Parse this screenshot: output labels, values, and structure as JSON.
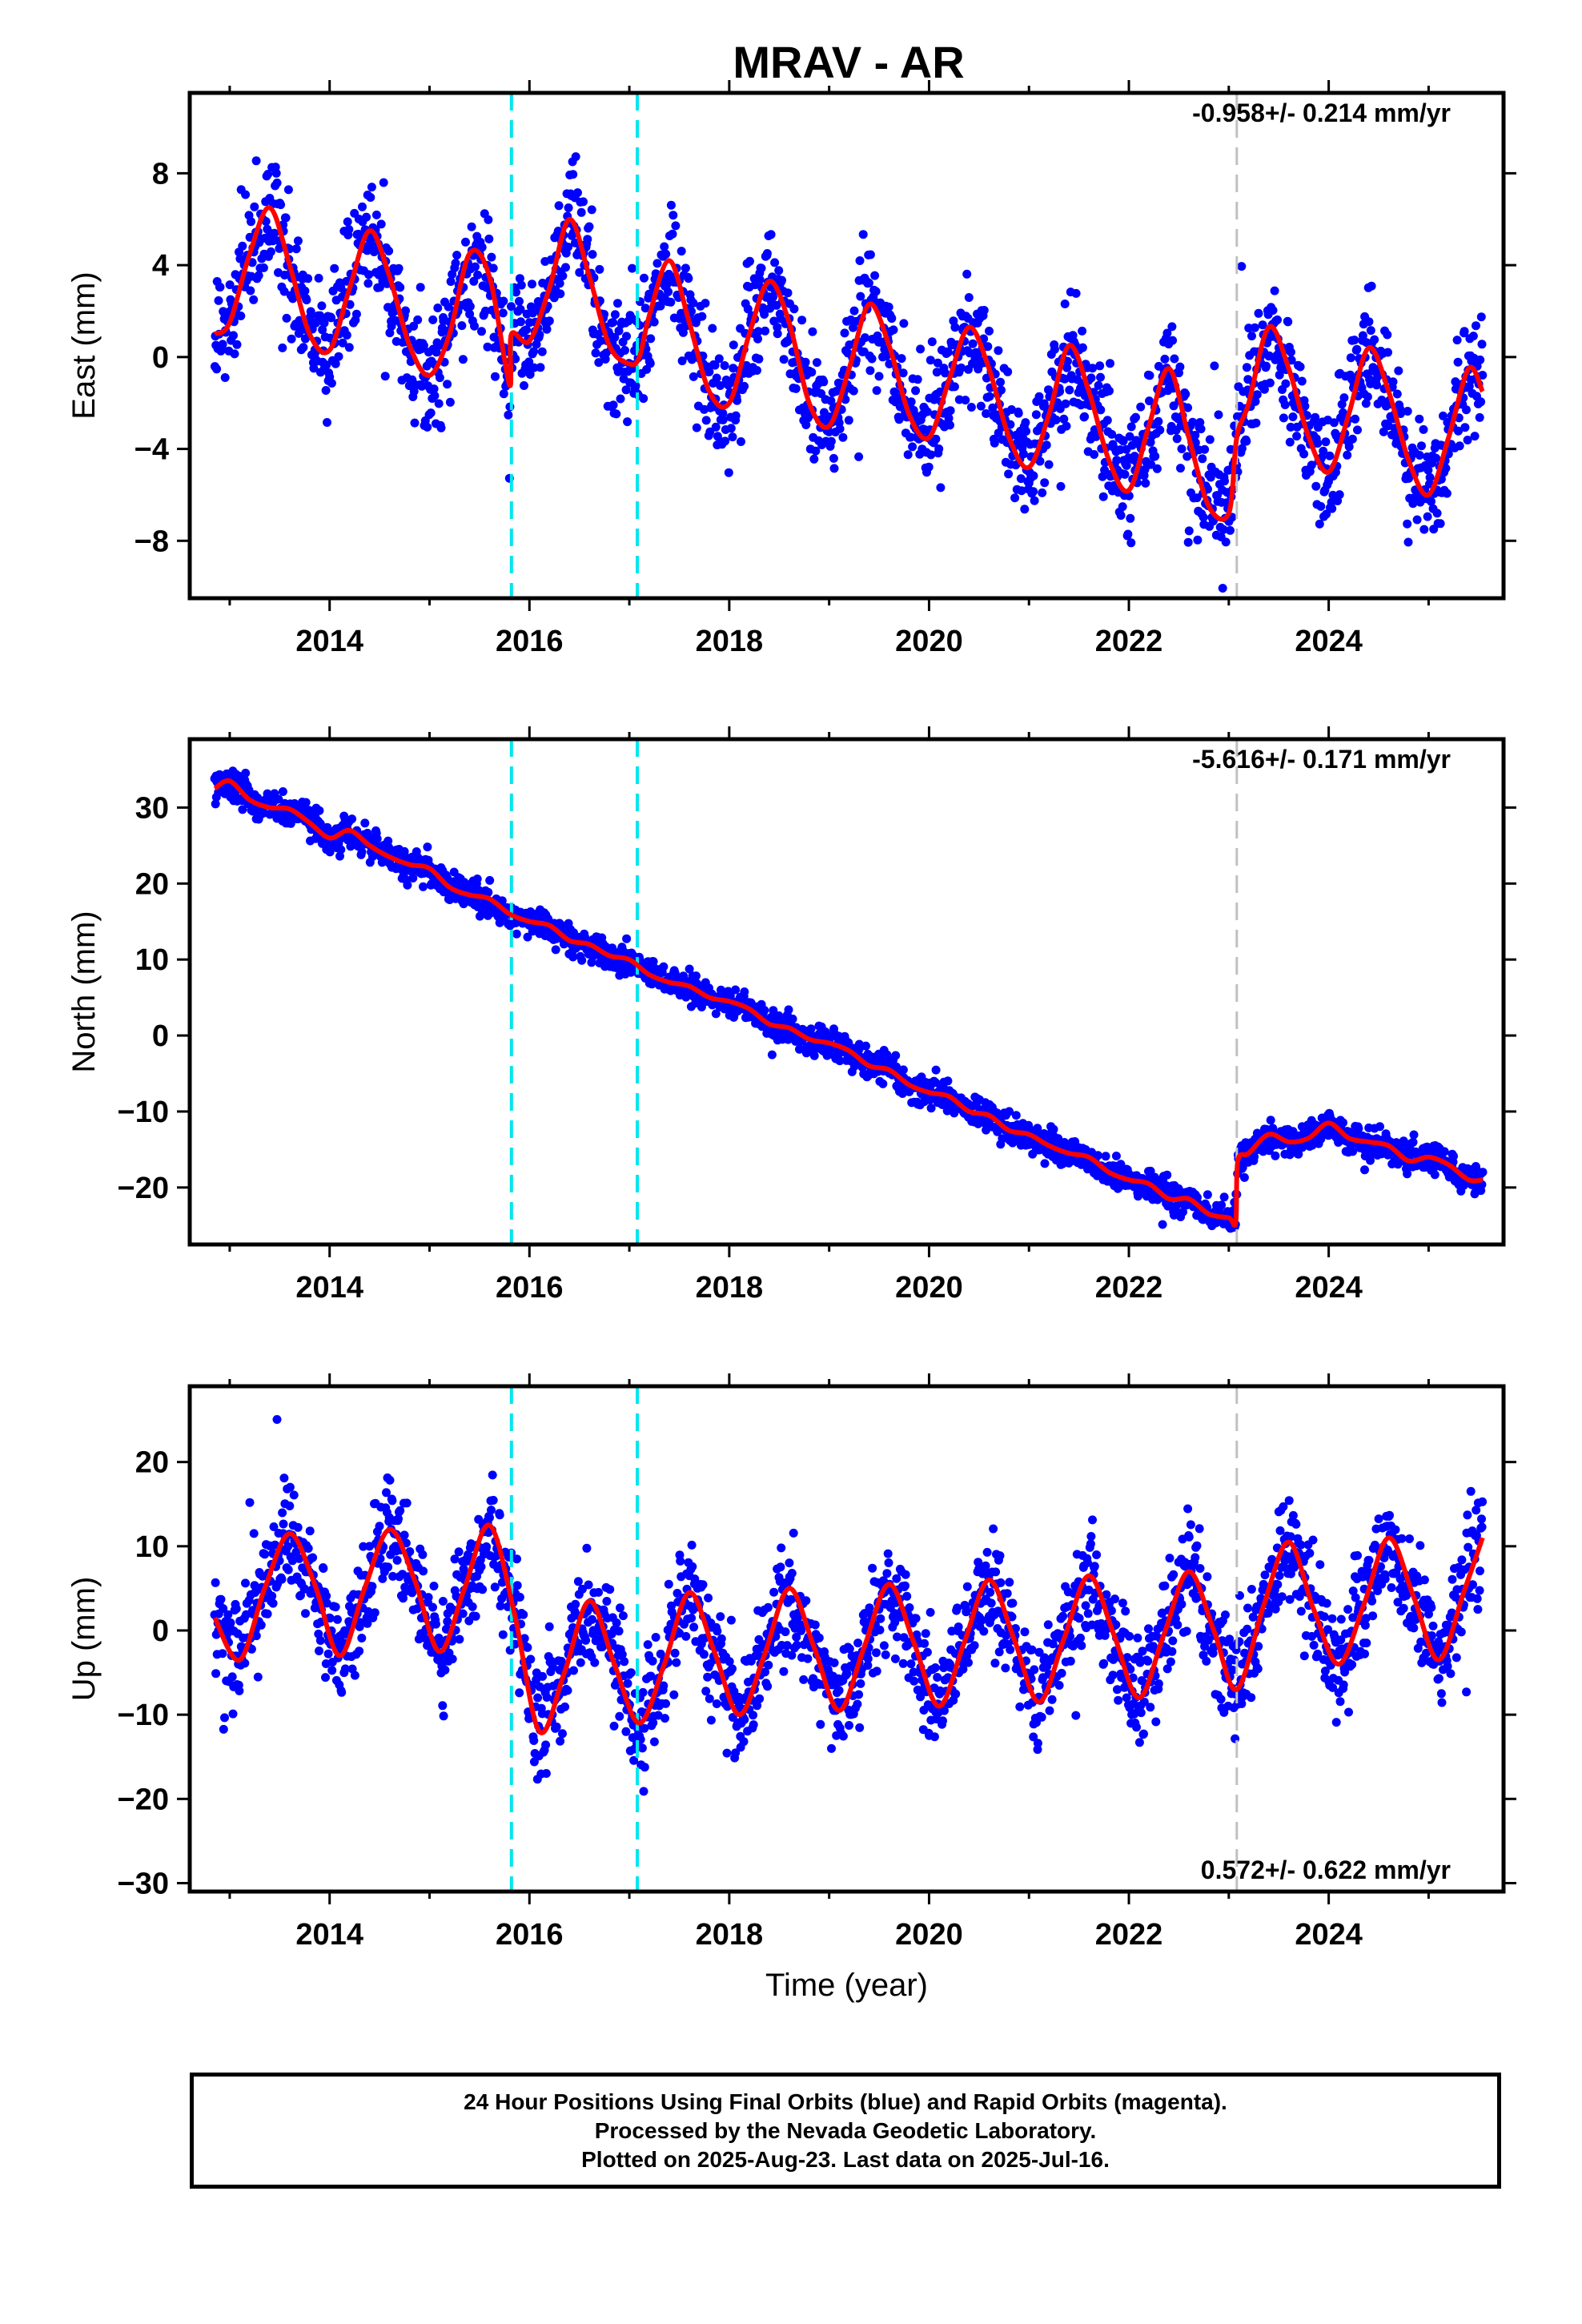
{
  "title": "MRAV - AR",
  "colors": {
    "final_orbits": "#0000ff",
    "model": "#ff0000",
    "equipment_change": "#00e5ee",
    "event": "#c0c0c0"
  },
  "chart_data": [
    {
      "type": "scatter",
      "component": "east",
      "ylabel": "East (mm)",
      "xlabel": "",
      "rate_label": "-0.958+/- 0.214 mm/yr",
      "xlim": [
        2012.6,
        2025.75
      ],
      "ylim": [
        -10.5,
        11.5
      ],
      "yticks": [
        -8,
        -4,
        0,
        4,
        8
      ],
      "xticks": [
        2014,
        2016,
        2018,
        2020,
        2022,
        2024
      ],
      "series": [
        {
          "kind": "model",
          "x": [
            2012.85,
            2013.0,
            2013.2,
            2013.4,
            2013.6,
            2013.8,
            2014.0,
            2014.2,
            2014.4,
            2014.6,
            2014.8,
            2015.0,
            2015.2,
            2015.4,
            2015.6,
            2015.8,
            2015.82,
            2016.0,
            2016.2,
            2016.4,
            2016.6,
            2016.8,
            2017.0,
            2017.1,
            2017.2,
            2017.4,
            2017.6,
            2017.8,
            2018.0,
            2018.2,
            2018.4,
            2018.6,
            2018.8,
            2019.0,
            2019.2,
            2019.4,
            2019.6,
            2019.8,
            2020.0,
            2020.2,
            2020.4,
            2020.6,
            2020.8,
            2021.0,
            2021.2,
            2021.4,
            2021.6,
            2021.8,
            2022.0,
            2022.2,
            2022.4,
            2022.6,
            2022.8,
            2023.0,
            2023.08,
            2023.2,
            2023.4,
            2023.6,
            2023.8,
            2024.0,
            2024.2,
            2024.4,
            2024.6,
            2024.8,
            2025.0,
            2025.2,
            2025.4,
            2025.54
          ],
          "y": [
            1.0,
            1.5,
            4.5,
            6.5,
            4.0,
            1.0,
            0.3,
            3.0,
            5.5,
            3.5,
            0.5,
            -0.8,
            1.0,
            4.5,
            3.5,
            -1.2,
            1.0,
            0.7,
            3.0,
            6.0,
            3.5,
            0.5,
            -0.3,
            0.0,
            1.8,
            4.2,
            1.5,
            -1.5,
            -2.0,
            1.0,
            3.3,
            1.5,
            -2.0,
            -3.0,
            -0.5,
            2.3,
            0.5,
            -2.5,
            -3.5,
            -1.0,
            1.3,
            -0.5,
            -3.5,
            -4.8,
            -2.5,
            0.5,
            -1.5,
            -4.5,
            -5.8,
            -3.0,
            -0.5,
            -3.5,
            -6.5,
            -6.8,
            -3.5,
            -2.0,
            1.3,
            -0.5,
            -3.5,
            -5.0,
            -2.5,
            0.4,
            -1.5,
            -4.5,
            -6.0,
            -3.5,
            -0.5,
            -1.5
          ]
        },
        {
          "kind": "equipment_change",
          "x": [
            2015.82,
            2017.08
          ]
        },
        {
          "kind": "event",
          "x": [
            2023.08
          ]
        }
      ]
    },
    {
      "type": "scatter",
      "component": "north",
      "ylabel": "North (mm)",
      "xlabel": "",
      "rate_label": "-5.616+/- 0.171 mm/yr",
      "xlim": [
        2012.6,
        2025.75
      ],
      "ylim": [
        -27.5,
        39
      ],
      "yticks": [
        -20,
        -10,
        0,
        10,
        20,
        30
      ],
      "xticks": [
        2014,
        2016,
        2018,
        2020,
        2022,
        2024
      ],
      "series": [
        {
          "kind": "model",
          "x": [
            2012.85,
            2013.0,
            2013.2,
            2013.4,
            2013.6,
            2013.8,
            2014.0,
            2014.2,
            2014.4,
            2014.6,
            2014.8,
            2015.0,
            2015.2,
            2015.4,
            2015.6,
            2015.8,
            2016.0,
            2016.2,
            2016.4,
            2016.6,
            2016.8,
            2017.0,
            2017.2,
            2017.4,
            2017.6,
            2017.8,
            2018.0,
            2018.2,
            2018.4,
            2018.6,
            2018.8,
            2019.0,
            2019.2,
            2019.4,
            2019.6,
            2019.8,
            2020.0,
            2020.2,
            2020.4,
            2020.6,
            2020.8,
            2021.0,
            2021.2,
            2021.4,
            2021.6,
            2021.8,
            2022.0,
            2022.2,
            2022.4,
            2022.6,
            2022.8,
            2023.0,
            2023.07,
            2023.09,
            2023.2,
            2023.4,
            2023.6,
            2023.8,
            2024.0,
            2024.2,
            2024.4,
            2024.6,
            2024.8,
            2025.0,
            2025.2,
            2025.4,
            2025.54
          ],
          "y": [
            32.5,
            33.5,
            31.0,
            30.0,
            29.8,
            28.0,
            26.0,
            27.0,
            25.0,
            23.5,
            22.5,
            22.0,
            19.5,
            18.5,
            18.0,
            16.0,
            15.0,
            14.5,
            12.5,
            12.0,
            10.5,
            10.0,
            8.0,
            7.0,
            6.5,
            5.0,
            4.5,
            3.5,
            1.5,
            1.0,
            -0.5,
            -1.0,
            -2.0,
            -4.0,
            -4.5,
            -6.5,
            -7.5,
            -8.0,
            -10.0,
            -10.5,
            -12.5,
            -13.0,
            -14.5,
            -15.5,
            -16.0,
            -18.0,
            -19.0,
            -19.5,
            -21.5,
            -21.5,
            -23.5,
            -24.0,
            -24.5,
            -16.5,
            -15.5,
            -13.0,
            -14.0,
            -13.5,
            -11.5,
            -13.5,
            -14.0,
            -14.5,
            -16.5,
            -16.0,
            -17.0,
            -19.0,
            -19.0
          ]
        },
        {
          "kind": "equipment_change",
          "x": [
            2015.82,
            2017.08
          ]
        },
        {
          "kind": "event",
          "x": [
            2023.08
          ]
        }
      ]
    },
    {
      "type": "scatter",
      "component": "up",
      "ylabel": "Up (mm)",
      "xlabel": "Time (year)",
      "rate_label": "0.572+/- 0.622 mm/yr",
      "xlim": [
        2012.6,
        2025.75
      ],
      "ylim": [
        -31,
        29
      ],
      "yticks": [
        -30,
        -20,
        -10,
        0,
        10,
        20
      ],
      "xticks": [
        2014,
        2016,
        2018,
        2020,
        2022,
        2024
      ],
      "series": [
        {
          "kind": "model",
          "x": [
            2012.85,
            2013.1,
            2013.35,
            2013.6,
            2013.85,
            2014.1,
            2014.35,
            2014.6,
            2014.85,
            2015.1,
            2015.35,
            2015.6,
            2015.85,
            2016.1,
            2016.35,
            2016.6,
            2016.85,
            2017.1,
            2017.35,
            2017.6,
            2017.85,
            2018.1,
            2018.35,
            2018.6,
            2018.85,
            2019.1,
            2019.35,
            2019.6,
            2019.85,
            2020.1,
            2020.35,
            2020.6,
            2020.85,
            2021.1,
            2021.35,
            2021.6,
            2021.85,
            2022.1,
            2022.35,
            2022.6,
            2022.85,
            2023.08,
            2023.35,
            2023.6,
            2023.85,
            2024.1,
            2024.35,
            2024.6,
            2024.85,
            2025.1,
            2025.35,
            2025.54
          ],
          "y": [
            1.5,
            -3.5,
            5.0,
            11.5,
            5.5,
            -3.0,
            5.0,
            12.0,
            6.0,
            -2.5,
            5.0,
            12.5,
            2.0,
            -12.0,
            -5.0,
            3.5,
            -4.0,
            -11.0,
            -4.0,
            4.5,
            -2.5,
            -10.0,
            -3.0,
            5.0,
            -2.0,
            -9.5,
            -2.0,
            5.5,
            -1.5,
            -9.0,
            -1.5,
            6.0,
            -1.0,
            -8.5,
            -1.0,
            6.5,
            -0.5,
            -8.0,
            -0.5,
            7.0,
            0.0,
            -7.0,
            3.0,
            10.5,
            2.5,
            -4.0,
            3.0,
            11.0,
            4.0,
            -3.5,
            4.5,
            11.0
          ]
        },
        {
          "kind": "equipment_change",
          "x": [
            2015.82,
            2017.08
          ]
        },
        {
          "kind": "event",
          "x": [
            2023.08
          ]
        }
      ]
    }
  ],
  "caption": {
    "line1": "24 Hour Positions Using Final Orbits (blue) and Rapid Orbits (magenta).",
    "line2": "Processed by the Nevada Geodetic Laboratory.",
    "line3": "Plotted on 2025-Aug-23. Last data on 2025-Jul-16."
  }
}
